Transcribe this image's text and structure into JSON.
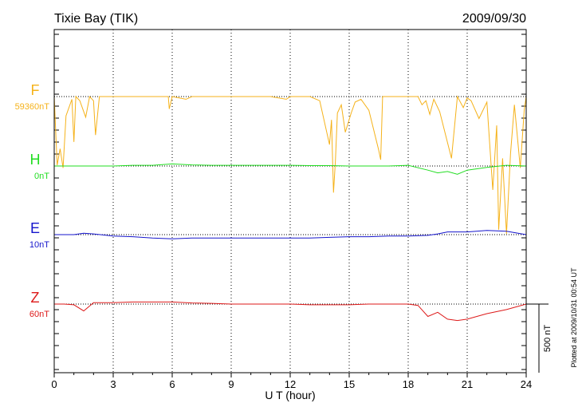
{
  "header": {
    "station": "Tixie Bay (TIK)",
    "date": "2009/09/30"
  },
  "footer": {
    "plotted": "Plotted at 2009/10/31 00:54 UT",
    "scale_label": "500 nT"
  },
  "colors": {
    "F": "#f5b21a",
    "H": "#22dd22",
    "E": "#1515cc",
    "Z": "#dd1a1a",
    "frame": "#000000",
    "grid": "#000000"
  },
  "chart_data": {
    "type": "line",
    "title": "Tixie Bay (TIK)",
    "subtitle": "2009/09/30",
    "xlabel": "U T (hour)",
    "ylabel": "",
    "xlim": [
      0,
      24
    ],
    "x_ticks": [
      0,
      3,
      6,
      9,
      12,
      15,
      18,
      21,
      24
    ],
    "x_tick_labels": [
      "0",
      "3",
      "6",
      "9",
      "12",
      "15",
      "18",
      "21",
      "24"
    ],
    "grid": "vertical dotted every 3 hours",
    "scale_bar_nT": 500,
    "series": [
      {
        "name": "F",
        "baseline_label": "59360nT",
        "x": [
          0,
          0.15,
          0.3,
          0.45,
          0.6,
          0.9,
          1.0,
          1.1,
          1.3,
          1.6,
          1.8,
          2.0,
          2.1,
          2.3,
          3,
          4,
          5,
          5.8,
          5.85,
          6.0,
          6.7,
          7,
          8,
          9,
          10,
          11,
          11.8,
          12,
          13,
          13.5,
          14.0,
          14.1,
          14.2,
          14.3,
          14.4,
          14.6,
          14.8,
          15.1,
          15.3,
          15.6,
          16.0,
          16.5,
          16.6,
          16.7,
          17,
          17.5,
          18.5,
          18.7,
          18.9,
          19.1,
          19.3,
          19.6,
          20.2,
          20.5,
          20.8,
          21.0,
          21.2,
          21.6,
          22.0,
          22.3,
          22.5,
          22.6,
          22.8,
          23.0,
          23.2,
          23.4,
          23.7,
          23.9,
          24
        ],
        "y": [
          0,
          -500,
          -380,
          -520,
          -140,
          -20,
          -330,
          0,
          -30,
          -150,
          0,
          -30,
          -280,
          0,
          0,
          0,
          0,
          0,
          -90,
          0,
          -20,
          0,
          0,
          0,
          0,
          0,
          -20,
          0,
          0,
          -30,
          -350,
          -170,
          -700,
          -470,
          -120,
          -60,
          -260,
          -120,
          -40,
          -20,
          -100,
          -390,
          -460,
          0,
          0,
          0,
          0,
          -60,
          -30,
          -130,
          -20,
          -110,
          -450,
          0,
          -80,
          -10,
          -30,
          -160,
          -40,
          -680,
          -210,
          -970,
          -450,
          -1000,
          -420,
          -60,
          -520,
          -100,
          0
        ]
      },
      {
        "name": "H",
        "baseline_label": "0nT",
        "x": [
          0,
          1,
          2,
          3,
          4,
          5,
          6,
          7,
          8,
          9,
          10,
          11,
          12,
          13,
          14,
          15,
          16,
          17,
          18,
          19,
          19.5,
          20,
          20.5,
          21,
          22,
          23,
          24
        ],
        "y": [
          0,
          0,
          0,
          0,
          5,
          5,
          15,
          8,
          5,
          5,
          5,
          5,
          5,
          3,
          3,
          0,
          0,
          0,
          5,
          -30,
          -50,
          -40,
          -60,
          -30,
          -10,
          5,
          0
        ]
      },
      {
        "name": "E",
        "baseline_label": "10nT",
        "x": [
          0,
          1,
          1.5,
          2,
          3,
          4,
          5,
          6,
          7,
          8,
          9,
          10,
          11,
          12,
          13,
          14,
          15,
          16,
          17,
          18,
          19,
          19.5,
          20,
          21,
          22,
          23,
          24
        ],
        "y": [
          0,
          0,
          10,
          5,
          -10,
          -15,
          -25,
          -30,
          -25,
          -25,
          -25,
          -25,
          -25,
          -25,
          -25,
          -20,
          -15,
          -15,
          -10,
          -10,
          -5,
          5,
          20,
          20,
          30,
          25,
          0
        ]
      },
      {
        "name": "Z",
        "baseline_label": "60nT",
        "x": [
          0,
          0.5,
          1,
          1.5,
          2,
          3,
          4,
          5,
          6,
          7,
          8,
          9,
          10,
          11,
          12,
          13,
          14,
          15,
          16,
          17,
          18,
          18.5,
          19,
          19.5,
          20,
          20.5,
          21,
          22,
          23,
          24
        ],
        "y": [
          0,
          0,
          -5,
          -50,
          10,
          10,
          15,
          15,
          15,
          8,
          5,
          0,
          0,
          0,
          0,
          -5,
          -5,
          -5,
          0,
          0,
          0,
          -10,
          -90,
          -60,
          -110,
          -120,
          -110,
          -70,
          -40,
          0
        ]
      }
    ]
  }
}
